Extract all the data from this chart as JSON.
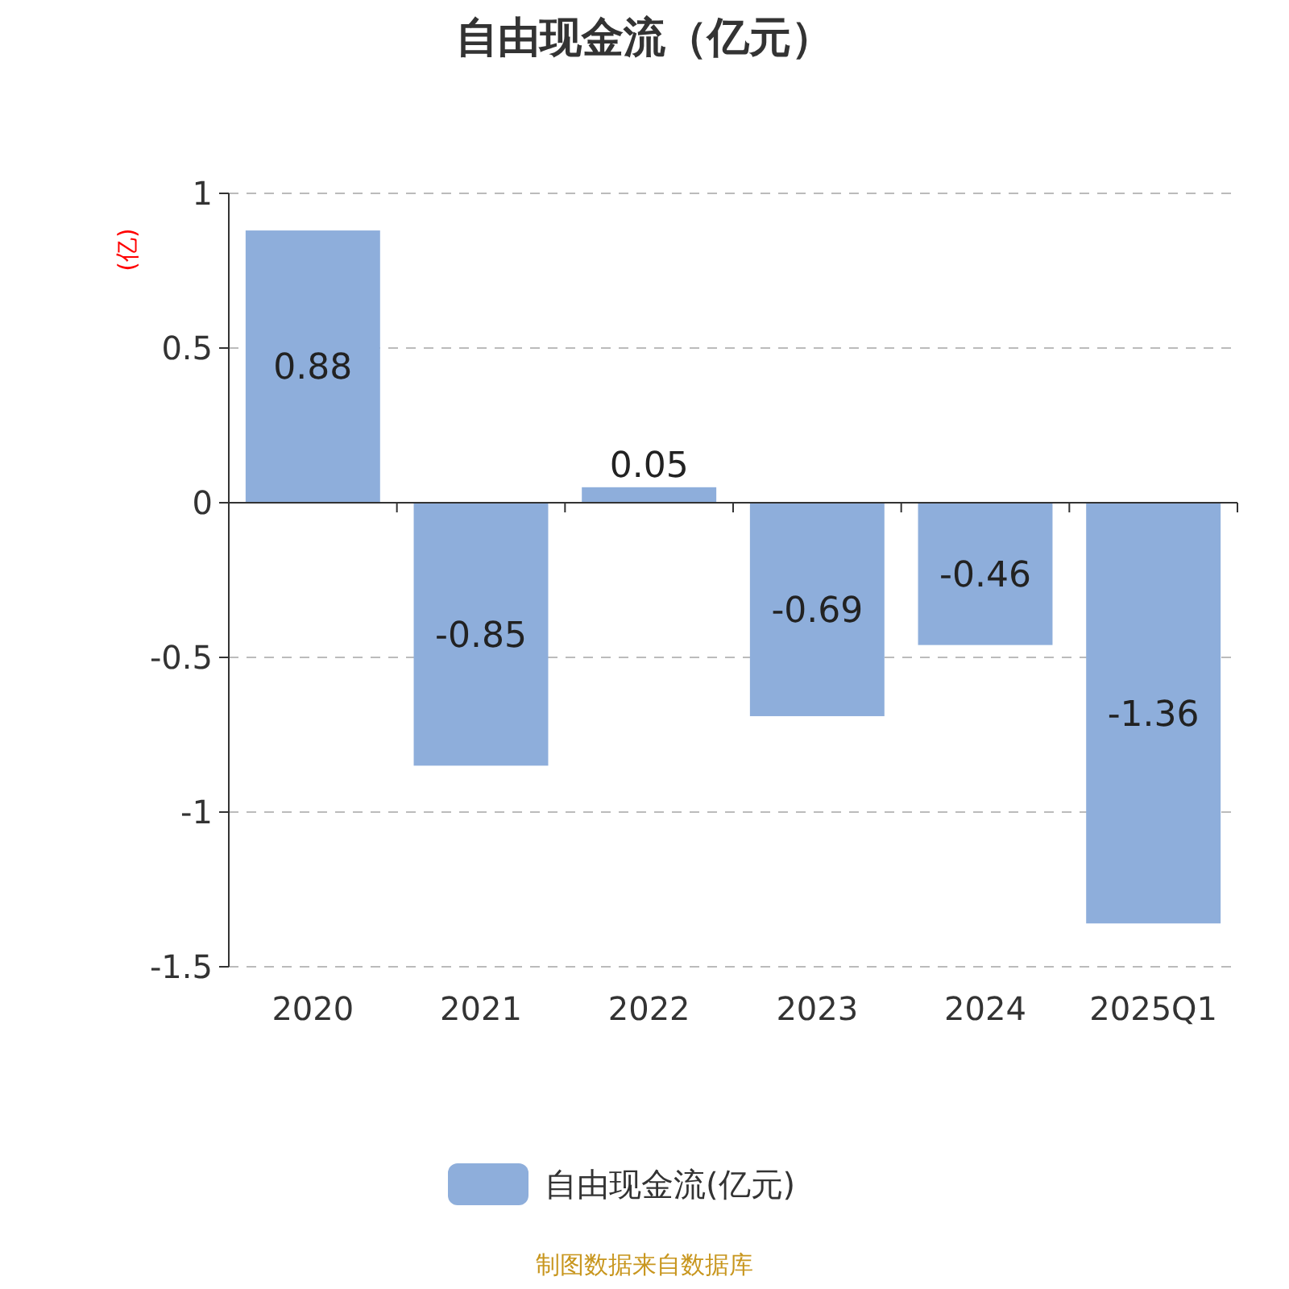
{
  "chart_data": {
    "type": "bar",
    "title": "自由现金流（亿元）",
    "ylabel": "(亿)",
    "categories": [
      "2020",
      "2021",
      "2022",
      "2023",
      "2024",
      "2025Q1"
    ],
    "series": [
      {
        "name": "自由现金流(亿元)",
        "color": "#8eaedb",
        "values": [
          0.88,
          -0.85,
          0.05,
          -0.69,
          -0.46,
          -1.36
        ]
      }
    ],
    "ylim": [
      -1.5,
      1
    ],
    "yticks": [
      -1.5,
      -1,
      -0.5,
      0,
      0.5,
      1
    ],
    "grid": "y",
    "legend": "bottom",
    "data_labels": true,
    "annotations": [
      "制图数据来自数据库"
    ]
  }
}
